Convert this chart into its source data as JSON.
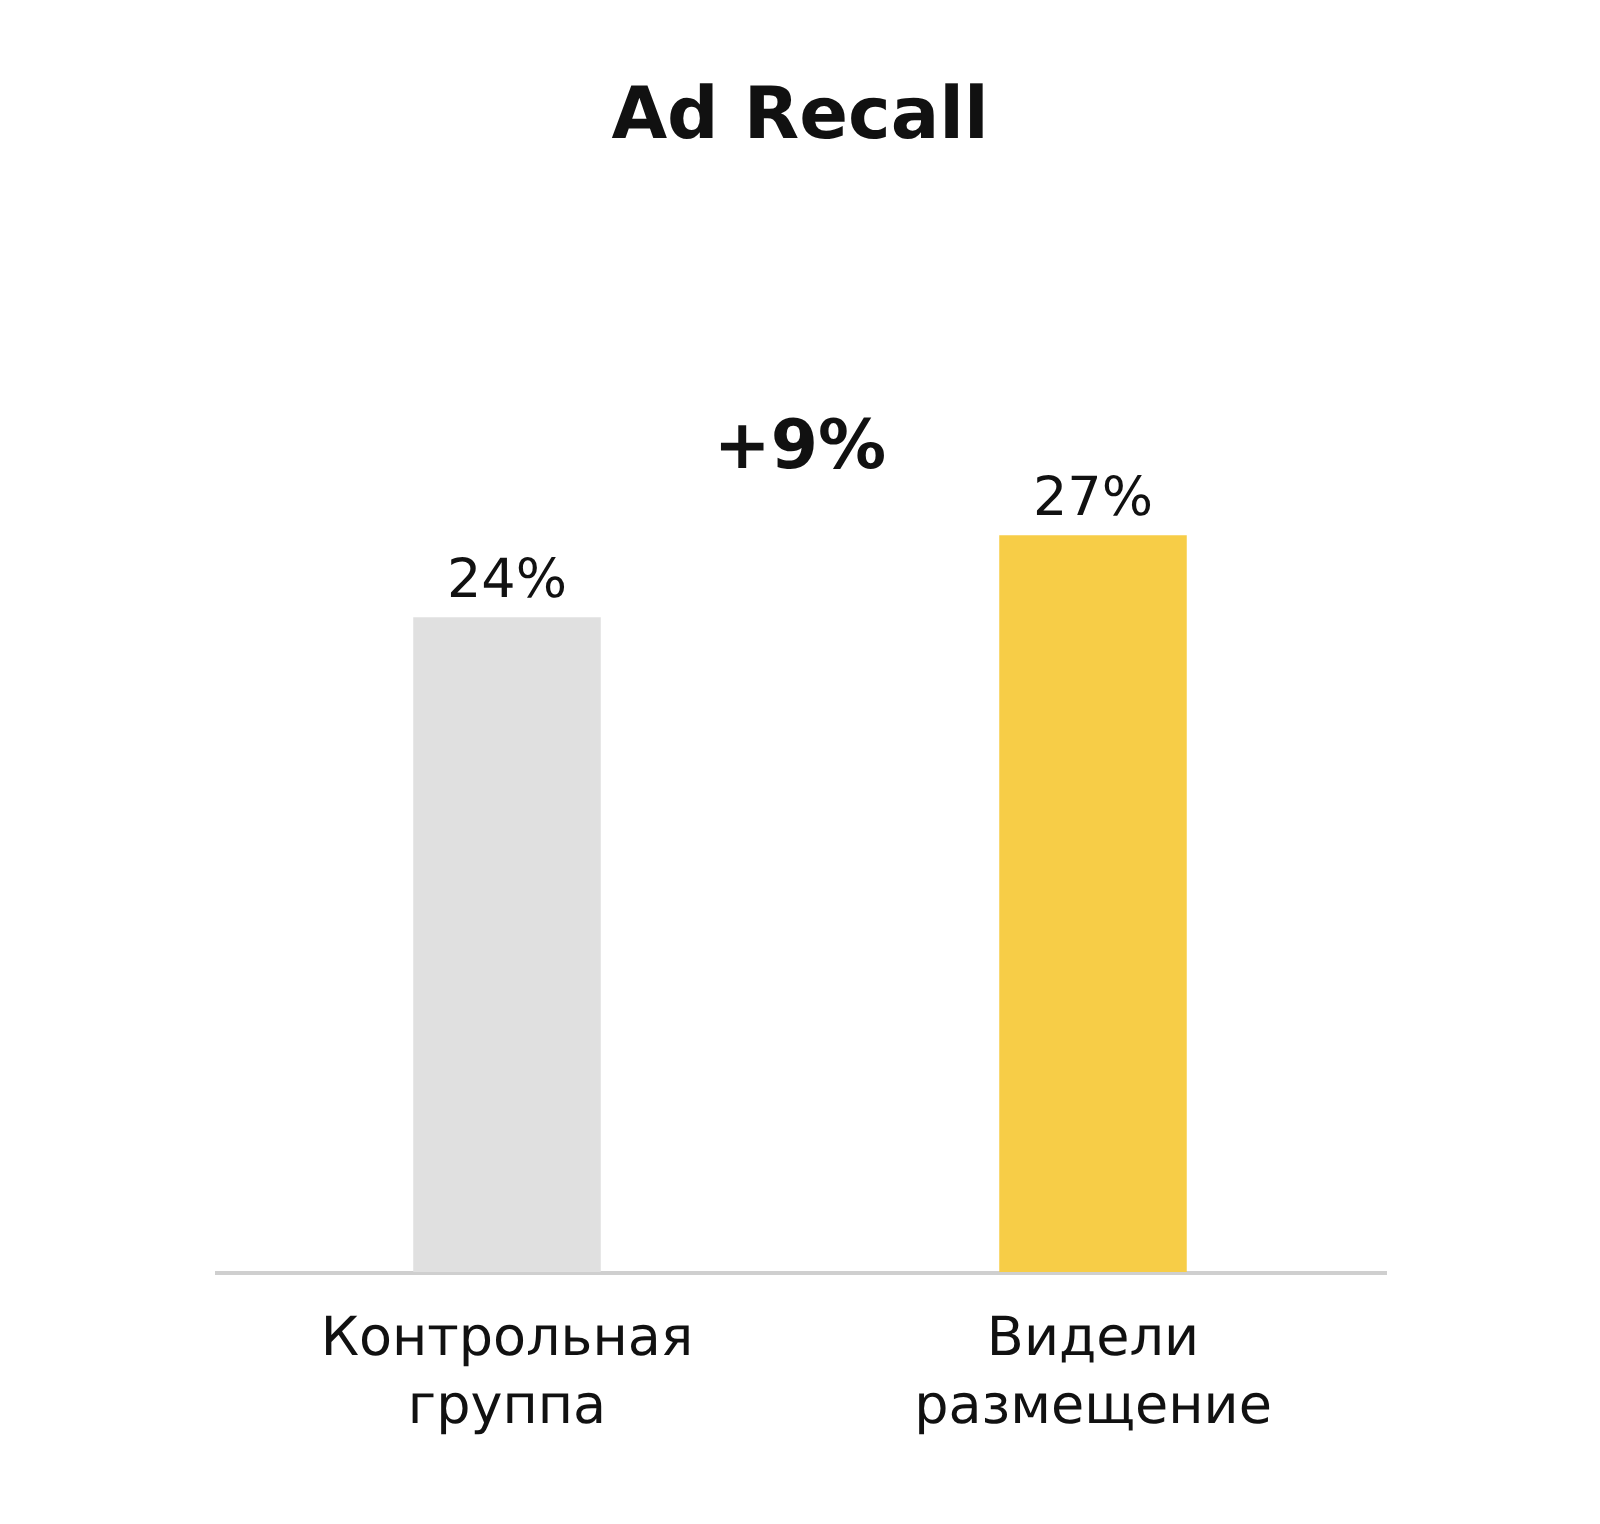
{
  "chart_data": {
    "type": "bar",
    "title": "Ad Recall",
    "categories": [
      "Контрольная группа",
      "Видели размещение"
    ],
    "values": [
      24,
      27
    ],
    "colors": [
      "#e0e0e0",
      "#f7cd47"
    ],
    "value_labels": [
      "24%",
      "27%"
    ],
    "annotations": [
      "+9%"
    ],
    "tick_labels": "x",
    "grid": false
  }
}
